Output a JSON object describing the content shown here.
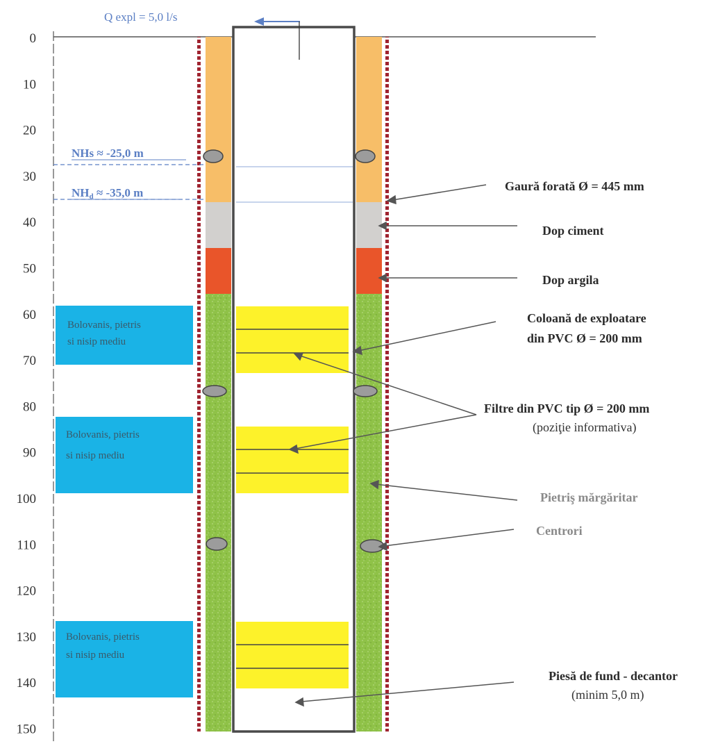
{
  "depth_axis": {
    "ticks": [
      "0",
      "10",
      "20",
      "30",
      "40",
      "50",
      "60",
      "70",
      "80",
      "90",
      "100",
      "110",
      "120",
      "130",
      "140",
      "150"
    ]
  },
  "header": {
    "q_label": "Q expl =  5,0  l/s"
  },
  "water_levels": {
    "static": "NHs ≈ -25,0 m",
    "dynamic_main": "NH",
    "dynamic_sub": "d",
    "dynamic_rest": " ≈ -35,0 m"
  },
  "strata": [
    {
      "line1": "Bolovanis, pietris",
      "line2": "si nisip mediu"
    },
    {
      "line1": "Bolovanis, pietris",
      "line2": "si nisip mediu"
    },
    {
      "line1": "Bolovanis, pietris",
      "line2": "si nisip mediu"
    }
  ],
  "labels": {
    "borehole": "Gaură forată Ø =  445 mm",
    "cement_plug": "Dop ciment",
    "clay_plug": "Dop argila",
    "casing_line1": "Coloană  de exploatare",
    "casing_line2": "din PVC  Ø  = 200 mm",
    "filters_line1": "Filtre din PVC tip  Ø = 200 mm",
    "filters_line2": "(poziţie informativa)",
    "gravel_pack": "Pietriş mărgăritar",
    "centralizers": "Centrori",
    "bottom_line1": "Piesă de  fund - decantor",
    "bottom_line2": "(minim 5,0 m)"
  },
  "colors": {
    "cement_fill": "#f7be68",
    "cement_plug": "#d2d0ce",
    "clay_plug": "#e9552a",
    "gravel": "#8fc248",
    "filter": "#fdf22a",
    "strata_box": "#1ab3e6",
    "hole_wall": "#a02430",
    "water_level": "#5b7fc4"
  }
}
